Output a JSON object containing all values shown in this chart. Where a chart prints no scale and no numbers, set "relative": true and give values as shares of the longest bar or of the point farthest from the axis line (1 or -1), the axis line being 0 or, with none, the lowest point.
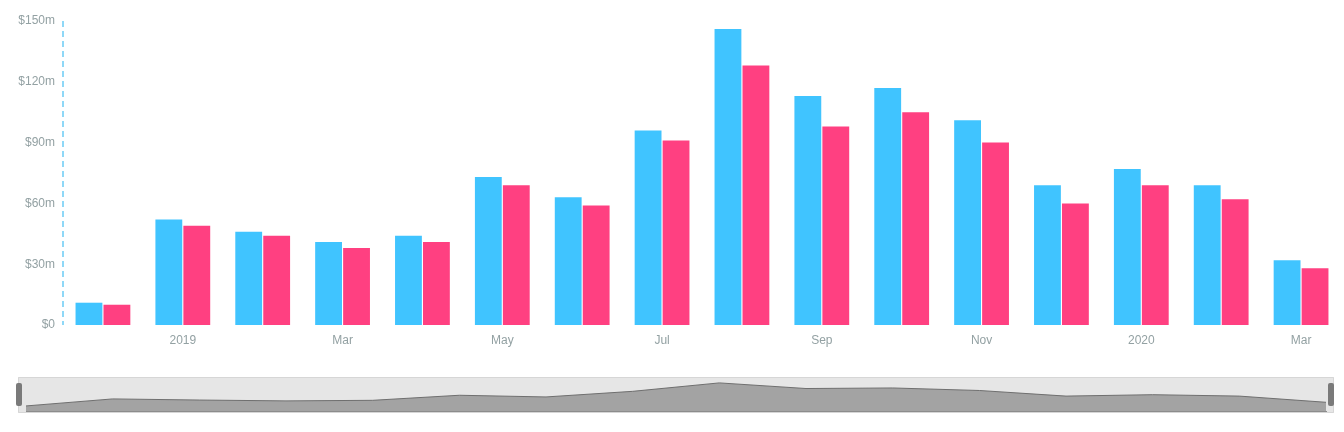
{
  "chart_data": [
    {
      "type": "bar",
      "categories": [
        null,
        "2019",
        null,
        "Mar",
        null,
        "May",
        null,
        "Jul",
        null,
        "Sep",
        null,
        "Nov",
        null,
        "2020",
        null,
        "Mar"
      ],
      "series": [
        {
          "color": "#40c4ff",
          "values": [
            11,
            52,
            46,
            41,
            44,
            73,
            63,
            96,
            146,
            113,
            117,
            101,
            69,
            77,
            69,
            32
          ]
        },
        {
          "color": "#ff4081",
          "values": [
            10,
            49,
            44,
            38,
            41,
            69,
            59,
            91,
            128,
            98,
            105,
            90,
            60,
            69,
            62,
            28
          ]
        }
      ],
      "ylim": [
        0,
        150
      ],
      "yticks": [
        {
          "value": 0,
          "label": "$0"
        },
        {
          "value": 30,
          "label": "$30m"
        },
        {
          "value": 60,
          "label": "$60m"
        },
        {
          "value": 90,
          "label": "$90m"
        },
        {
          "value": 120,
          "label": "$120m"
        },
        {
          "value": 150,
          "label": "$150m"
        }
      ],
      "grid": false,
      "legend": false
    },
    {
      "type": "area",
      "relative": true,
      "categories": [
        null,
        null,
        null,
        null,
        null,
        null,
        null,
        null,
        null,
        null,
        null,
        null,
        null,
        null,
        null,
        null
      ],
      "values": [
        0.18,
        0.43,
        0.39,
        0.36,
        0.38,
        0.56,
        0.5,
        0.7,
        1,
        0.8,
        0.82,
        0.73,
        0.53,
        0.58,
        0.53,
        0.31
      ],
      "color": "#a3a3a3"
    }
  ]
}
